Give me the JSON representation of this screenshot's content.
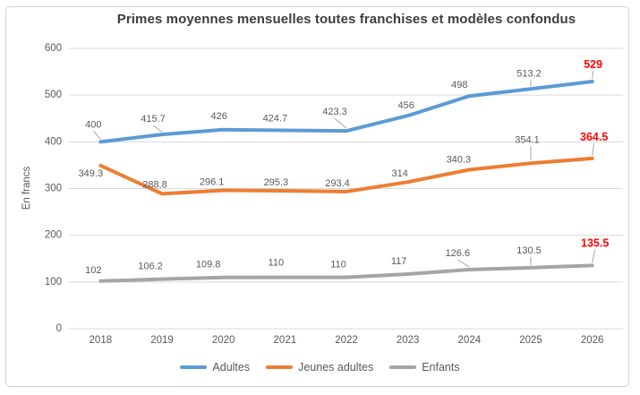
{
  "frame": {
    "background": "#ffffff",
    "border_color": "#d2d2d2"
  },
  "chart_data": {
    "type": "line",
    "title": "Primes moyennes mensuelles toutes franchises et modèles confondus",
    "xlabel": "",
    "ylabel": "En francs",
    "categories": [
      "2018",
      "2019",
      "2020",
      "2021",
      "2022",
      "2023",
      "2024",
      "2025",
      "2026"
    ],
    "series": [
      {
        "name": "Adultes",
        "color": "#5B9BD5",
        "values": [
          400,
          415.7,
          426,
          424.7,
          423.3,
          456,
          498,
          513.2,
          529
        ]
      },
      {
        "name": "Jeunes adultes",
        "color": "#ED7D31",
        "values": [
          349.3,
          288.8,
          296.1,
          295.3,
          293.4,
          314,
          340.3,
          354.1,
          364.5
        ]
      },
      {
        "name": "Enfants",
        "color": "#A5A5A5",
        "values": [
          102,
          106.2,
          109.8,
          110,
          110,
          117,
          126.6,
          130.5,
          135.5
        ]
      }
    ],
    "ylim": [
      0,
      600
    ],
    "yticks": [
      0,
      100,
      200,
      300,
      400,
      500,
      600
    ],
    "grid": true,
    "legend_position": "bottom",
    "data_labels": true,
    "label_color": "#595959",
    "last_label_color": "#FF0000",
    "axis_text_color": "#595959",
    "gridline_color": "#D9D9D9",
    "title_color": "#3d3d3d"
  }
}
